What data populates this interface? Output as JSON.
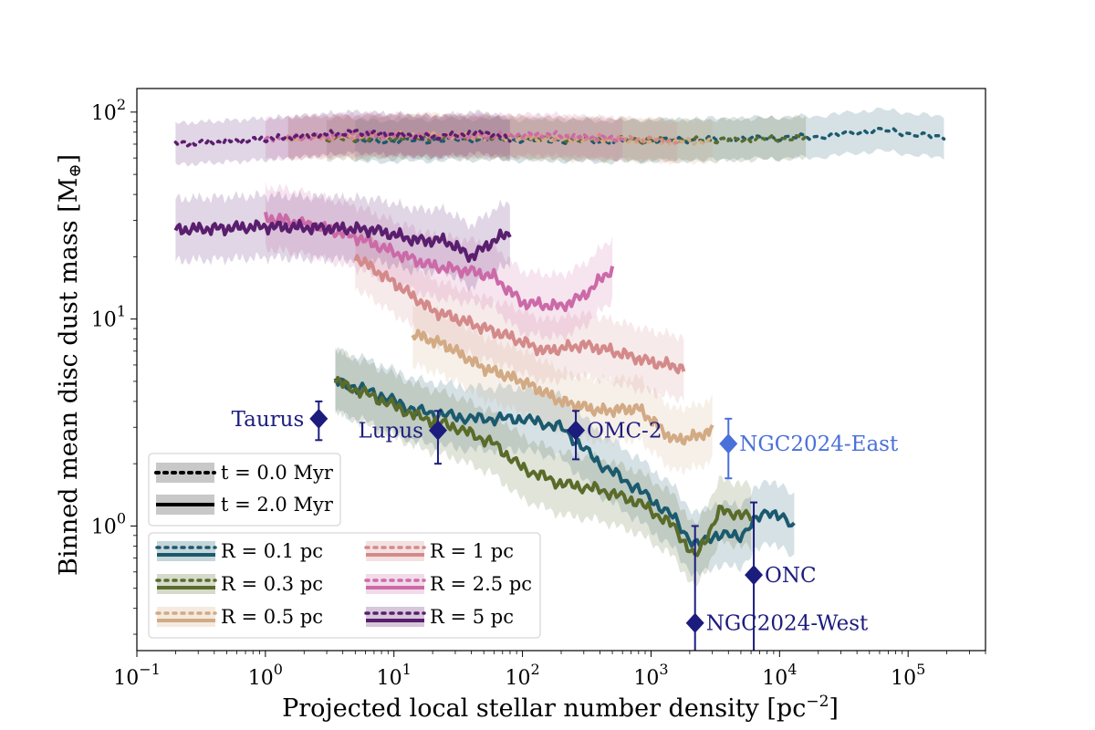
{
  "chart_data": {
    "type": "line",
    "xscale": "log",
    "yscale": "log",
    "xlabel": "Projected local stellar number density [pc",
    "xlabel_sup": "−2",
    "xlabel_end": "]",
    "ylabel": "Binned mean disc dust mass [M",
    "ylabel_sub": "⊕",
    "ylabel_end": "]",
    "xlim": [
      0.1,
      400000
    ],
    "ylim": [
      0.25,
      130
    ],
    "x_ticks": [
      {
        "value": 0.1,
        "base": "10",
        "exp": "−1"
      },
      {
        "value": 1,
        "base": "10",
        "exp": "0"
      },
      {
        "value": 10,
        "base": "10",
        "exp": "1"
      },
      {
        "value": 100,
        "base": "10",
        "exp": "2"
      },
      {
        "value": 1000,
        "base": "10",
        "exp": "3"
      },
      {
        "value": 10000,
        "base": "10",
        "exp": "4"
      },
      {
        "value": 100000,
        "base": "10",
        "exp": "5"
      }
    ],
    "y_ticks": [
      {
        "value": 1,
        "base": "10",
        "exp": "0"
      },
      {
        "value": 10,
        "base": "10",
        "exp": "1"
      },
      {
        "value": 100,
        "base": "10",
        "exp": "2"
      }
    ],
    "time_legend": [
      {
        "label": "t = 0.0 Myr",
        "style": "dotted"
      },
      {
        "label": "t = 2.0 Myr",
        "style": "solid"
      }
    ],
    "series": [
      {
        "name": "R = 0.1 pc",
        "color": "#1b5a6e",
        "t0": [
          [
            5,
            72
          ],
          [
            50,
            74
          ],
          [
            500,
            72
          ],
          [
            3000,
            74
          ],
          [
            20000,
            76
          ],
          [
            60000,
            82
          ],
          [
            190000,
            75
          ]
        ],
        "t2": [
          [
            3.5,
            5.0
          ],
          [
            7,
            4.4
          ],
          [
            15,
            3.6
          ],
          [
            40,
            3.3
          ],
          [
            100,
            3.3
          ],
          [
            200,
            3.0
          ],
          [
            400,
            2.0
          ],
          [
            800,
            1.5
          ],
          [
            1500,
            1.1
          ],
          [
            2200,
            0.8
          ],
          [
            3000,
            0.9
          ],
          [
            5000,
            0.9
          ],
          [
            8000,
            1.2
          ],
          [
            13000,
            1.0
          ]
        ]
      },
      {
        "name": "R = 0.3 pc",
        "color": "#5a6b2a",
        "t0": [
          [
            3,
            74
          ],
          [
            30,
            76
          ],
          [
            300,
            74
          ],
          [
            3000,
            73
          ],
          [
            16000,
            75
          ]
        ],
        "t2": [
          [
            3.5,
            5.0
          ],
          [
            7,
            4.2
          ],
          [
            15,
            3.4
          ],
          [
            30,
            3.0
          ],
          [
            60,
            2.5
          ],
          [
            100,
            1.9
          ],
          [
            200,
            1.6
          ],
          [
            400,
            1.5
          ],
          [
            800,
            1.3
          ],
          [
            1500,
            1.0
          ],
          [
            2200,
            0.7
          ],
          [
            3500,
            1.2
          ],
          [
            6000,
            1.1
          ]
        ]
      },
      {
        "name": "R = 0.5 pc",
        "color": "#d2aa84",
        "t0": [
          [
            1.5,
            75
          ],
          [
            15,
            78
          ],
          [
            150,
            74
          ],
          [
            1500,
            72
          ],
          [
            3000,
            72
          ]
        ],
        "t2": [
          [
            14,
            8.5
          ],
          [
            25,
            7.5
          ],
          [
            50,
            5.8
          ],
          [
            100,
            5.0
          ],
          [
            200,
            4.0
          ],
          [
            400,
            3.6
          ],
          [
            800,
            3.7
          ],
          [
            1500,
            2.6
          ],
          [
            2200,
            2.7
          ],
          [
            3000,
            2.9
          ]
        ]
      },
      {
        "name": "R = 1 pc",
        "color": "#d48a8a",
        "t0": [
          [
            1.5,
            75
          ],
          [
            15,
            78
          ],
          [
            150,
            76
          ],
          [
            1000,
            74
          ],
          [
            1600,
            72
          ]
        ],
        "t2": [
          [
            5,
            20
          ],
          [
            10,
            15
          ],
          [
            20,
            11
          ],
          [
            40,
            9.5
          ],
          [
            80,
            8.2
          ],
          [
            150,
            7.0
          ],
          [
            300,
            7.5
          ],
          [
            500,
            7.0
          ],
          [
            1000,
            6.2
          ],
          [
            1800,
            5.8
          ]
        ]
      },
      {
        "name": "R = 2.5 pc",
        "color": "#cc6aa8",
        "t0": [
          [
            1.0,
            74
          ],
          [
            5,
            78
          ],
          [
            30,
            76
          ],
          [
            150,
            78
          ],
          [
            600,
            74
          ]
        ],
        "t2": [
          [
            1.0,
            31
          ],
          [
            2,
            29
          ],
          [
            5,
            25
          ],
          [
            10,
            21
          ],
          [
            20,
            18
          ],
          [
            40,
            17
          ],
          [
            60,
            16
          ],
          [
            100,
            12
          ],
          [
            200,
            11.5
          ],
          [
            300,
            13
          ],
          [
            500,
            17.5
          ]
        ]
      },
      {
        "name": "R = 5 pc",
        "color": "#5a1e6e",
        "t0": [
          [
            0.2,
            70
          ],
          [
            1,
            74
          ],
          [
            5,
            80
          ],
          [
            20,
            76
          ],
          [
            50,
            80
          ],
          [
            80,
            74
          ]
        ],
        "t2": [
          [
            0.2,
            27
          ],
          [
            0.5,
            27.5
          ],
          [
            1,
            28
          ],
          [
            3,
            27.5
          ],
          [
            7,
            27
          ],
          [
            15,
            24
          ],
          [
            25,
            24
          ],
          [
            40,
            20
          ],
          [
            60,
            24
          ],
          [
            80,
            26
          ]
        ]
      }
    ],
    "clusters": [
      {
        "name": "Taurus",
        "x": 2.6,
        "y": 3.3,
        "yerr": [
          2.6,
          4.0
        ],
        "color": "#1c1c7e",
        "label_side": "left"
      },
      {
        "name": "Lupus",
        "x": 22,
        "y": 2.9,
        "yerr": [
          2.0,
          3.6
        ],
        "color": "#1c1c7e",
        "label_side": "left"
      },
      {
        "name": "OMC-2",
        "x": 260,
        "y": 2.9,
        "yerr": [
          2.1,
          3.6
        ],
        "color": "#1c1c7e",
        "label_side": "right"
      },
      {
        "name": "NGC2024-East",
        "x": 4000,
        "y": 2.5,
        "yerr": [
          1.7,
          3.3
        ],
        "color": "#4a70d9",
        "label_side": "right"
      },
      {
        "name": "ONC",
        "x": 6300,
        "y": 0.58,
        "yerr": [
          0.25,
          1.3
        ],
        "color": "#1c1c7e",
        "label_side": "right"
      },
      {
        "name": "NGC2024-West",
        "x": 2200,
        "y": 0.34,
        "yerr": [
          0.25,
          1.0
        ],
        "color": "#1c1c7e",
        "label_side": "right"
      }
    ]
  }
}
